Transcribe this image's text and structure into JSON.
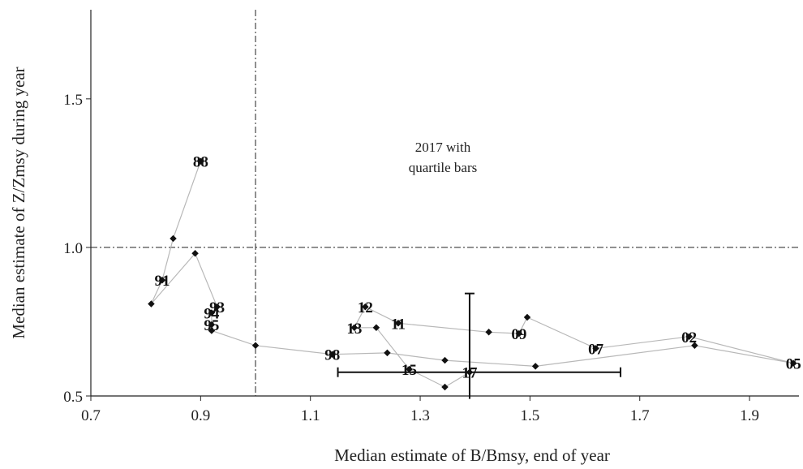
{
  "chart_data": {
    "type": "scatter",
    "title": "",
    "xlabel": "Median estimate of B/Bmsy, end of year",
    "ylabel": "Median estimate of Z/Zmsy during year",
    "xlim": [
      0.7,
      1.99
    ],
    "ylim": [
      0.5,
      1.8
    ],
    "x_ticks": [
      "0.7",
      "0.9",
      "1.1",
      "1.3",
      "1.5",
      "1.7",
      "1.9"
    ],
    "y_ticks": [
      "0.5",
      "1.0",
      "1.5"
    ],
    "grid": false,
    "reference_lines": {
      "x": 1.0,
      "y": 1.0
    },
    "annotation": [
      "2017 with",
      "quartile bars"
    ],
    "series": [
      {
        "points": [
          {
            "x": 0.9,
            "y": 1.29,
            "label": "88"
          },
          {
            "x": 0.85,
            "y": 1.03,
            "label": ""
          },
          {
            "x": 0.83,
            "y": 0.89,
            "label": "91"
          },
          {
            "x": 0.81,
            "y": 0.81,
            "label": ""
          },
          {
            "x": 0.89,
            "y": 0.98,
            "label": ""
          },
          {
            "x": 0.93,
            "y": 0.8,
            "label": "93"
          },
          {
            "x": 0.92,
            "y": 0.78,
            "label": "94"
          },
          {
            "x": 0.92,
            "y": 0.74,
            "label": "95"
          },
          {
            "x": 0.92,
            "y": 0.72,
            "label": ""
          },
          {
            "x": 1.0,
            "y": 0.67,
            "label": ""
          },
          {
            "x": 1.14,
            "y": 0.64,
            "label": "98"
          },
          {
            "x": 1.24,
            "y": 0.645,
            "label": ""
          },
          {
            "x": 1.345,
            "y": 0.62,
            "label": ""
          },
          {
            "x": 1.51,
            "y": 0.6,
            "label": ""
          },
          {
            "x": 1.8,
            "y": 0.67,
            "label": ""
          },
          {
            "x": 1.98,
            "y": 0.61,
            "label": "05"
          },
          {
            "x": 1.79,
            "y": 0.7,
            "label": "02"
          },
          {
            "x": 1.62,
            "y": 0.66,
            "label": "07"
          },
          {
            "x": 1.495,
            "y": 0.765,
            "label": ""
          },
          {
            "x": 1.48,
            "y": 0.71,
            "label": "09"
          },
          {
            "x": 1.425,
            "y": 0.715,
            "label": ""
          },
          {
            "x": 1.26,
            "y": 0.745,
            "label": "11"
          },
          {
            "x": 1.2,
            "y": 0.8,
            "label": "12"
          },
          {
            "x": 1.18,
            "y": 0.73,
            "label": "13"
          },
          {
            "x": 1.22,
            "y": 0.73,
            "label": ""
          },
          {
            "x": 1.28,
            "y": 0.59,
            "label": "15"
          },
          {
            "x": 1.345,
            "y": 0.53,
            "label": ""
          },
          {
            "x": 1.39,
            "y": 0.58,
            "label": "17"
          }
        ],
        "color": "#b8b8b8",
        "marker_color": "#111111"
      }
    ],
    "quartile_bars_2017": {
      "center": {
        "x": 1.39,
        "y": 0.58
      },
      "x_range": [
        1.15,
        1.665
      ],
      "y_range": [
        0.49,
        0.845
      ]
    }
  }
}
